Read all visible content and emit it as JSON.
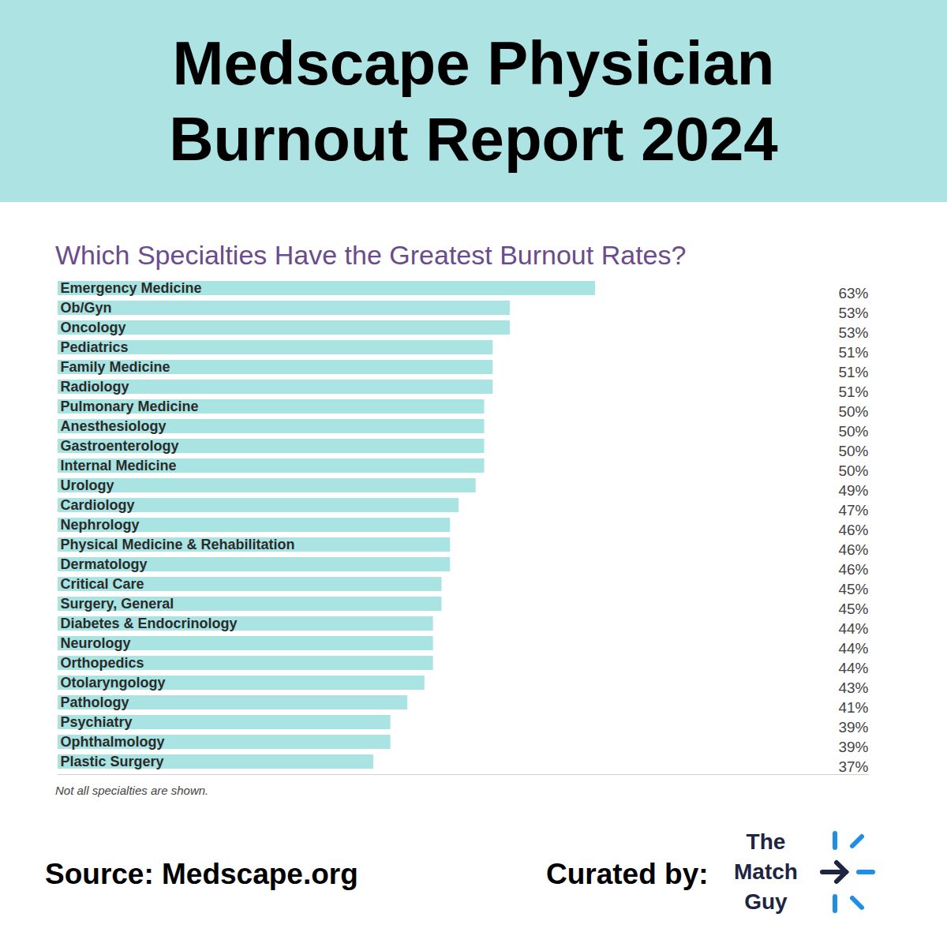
{
  "chart_data": {
    "type": "bar",
    "orientation": "horizontal",
    "title": "Medscape Physician Burnout Report 2024",
    "subtitle": "Which Specialties Have the Greatest Burnout Rates?",
    "annotations": [
      "Not all specialties are shown.",
      "Source: Medscape.org",
      "Curated by:",
      "The Match Guy"
    ],
    "categories": [
      "Emergency Medicine",
      "Ob/Gyn",
      "Oncology",
      "Pediatrics",
      "Family Medicine",
      "Radiology",
      "Pulmonary Medicine",
      "Anesthesiology",
      "Gastroenterology",
      "Internal Medicine",
      "Urology",
      "Cardiology",
      "Nephrology",
      "Physical Medicine & Rehabilitation",
      "Dermatology",
      "Critical Care",
      "Surgery, General",
      "Diabetes & Endocrinology",
      "Neurology",
      "Orthopedics",
      "Otolaryngology",
      "Pathology",
      "Psychiatry",
      "Ophthalmology",
      "Plastic Surgery"
    ],
    "values": [
      63,
      53,
      53,
      51,
      51,
      51,
      50,
      50,
      50,
      50,
      49,
      47,
      46,
      46,
      46,
      45,
      45,
      44,
      44,
      44,
      43,
      41,
      39,
      39,
      37
    ],
    "value_labels": [
      "63%",
      "53%",
      "53%",
      "51%",
      "51%",
      "51%",
      "50%",
      "50%",
      "50%",
      "50%",
      "49%",
      "47%",
      "46%",
      "46%",
      "46%",
      "45%",
      "45%",
      "44%",
      "44%",
      "44%",
      "43%",
      "41%",
      "39%",
      "39%",
      "37%"
    ],
    "color": "#a9e4e3",
    "xlim": [
      0,
      95
    ],
    "xticks": [],
    "grid": false,
    "data_labels": true,
    "tick_labels": "y"
  }
}
